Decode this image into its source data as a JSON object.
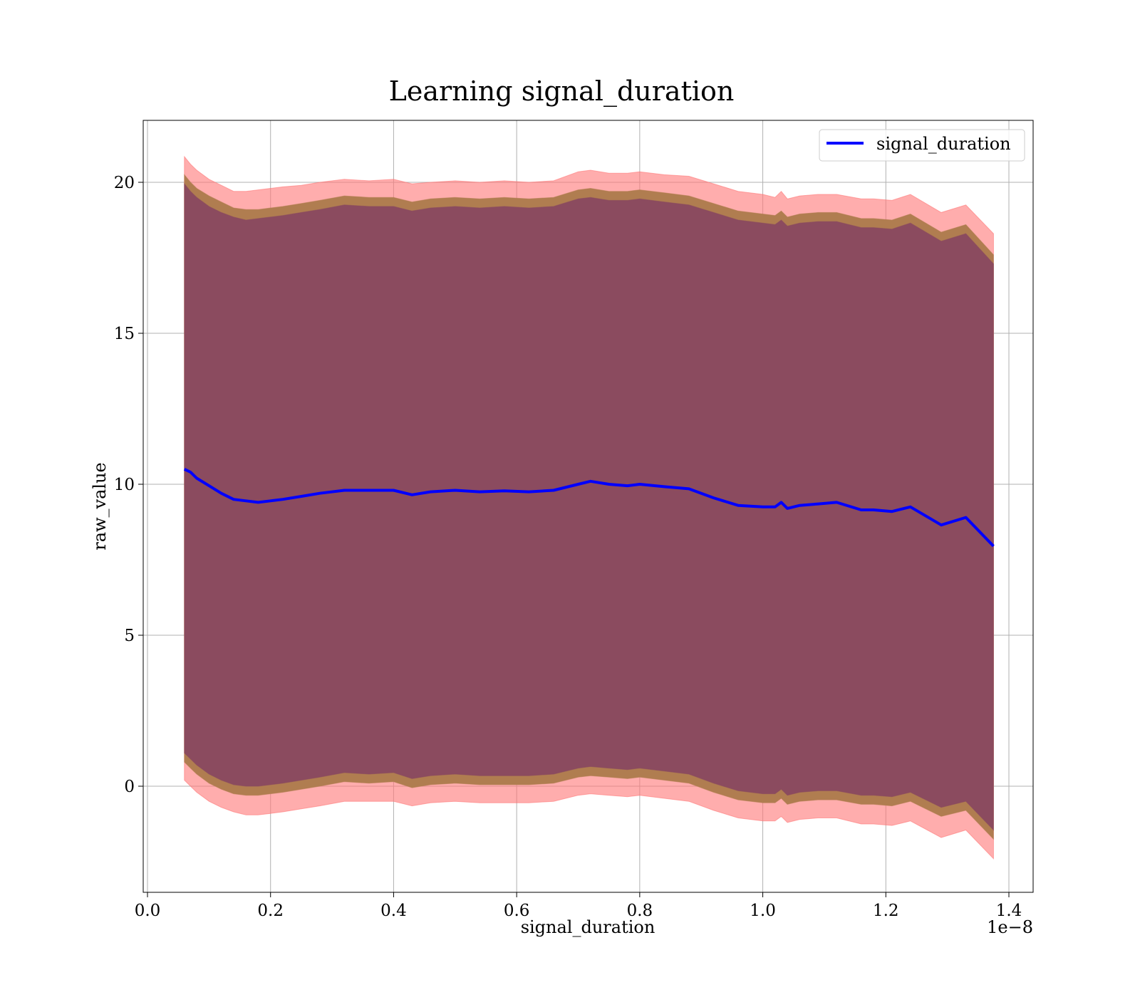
{
  "chart_data": {
    "type": "line",
    "title": "Learning signal_duration",
    "xlabel": "signal_duration",
    "ylabel": "raw_value",
    "x_offset_label": "1e−8",
    "xlim": [
      0.0,
      1.4
    ],
    "ylim": [
      -3.5,
      22
    ],
    "x_ticks": [
      "0.0",
      "0.2",
      "0.4",
      "0.6",
      "0.8",
      "1.0",
      "1.2",
      "1.4"
    ],
    "x_tick_values": [
      0.0,
      0.2,
      0.4,
      0.6,
      0.8,
      1.0,
      1.2,
      1.4
    ],
    "y_ticks": [
      "0",
      "5",
      "10",
      "15",
      "20"
    ],
    "y_tick_values": [
      0,
      5,
      10,
      15,
      20
    ],
    "grid": true,
    "legend": {
      "position": "top-right",
      "entries": [
        "signal_duration"
      ]
    },
    "colors": {
      "line": "#0000ff",
      "outer_band": "#ff7777",
      "middle_band": "#b07d50",
      "inner_band": "#8b4b5f"
    },
    "series": [
      {
        "name": "signal_duration",
        "x": [
          0.06,
          0.07,
          0.08,
          0.1,
          0.12,
          0.14,
          0.16,
          0.18,
          0.2,
          0.22,
          0.25,
          0.28,
          0.32,
          0.36,
          0.4,
          0.43,
          0.46,
          0.5,
          0.54,
          0.58,
          0.62,
          0.66,
          0.7,
          0.72,
          0.75,
          0.78,
          0.8,
          0.84,
          0.88,
          0.92,
          0.96,
          1.0,
          1.02,
          1.03,
          1.04,
          1.06,
          1.09,
          1.12,
          1.16,
          1.18,
          1.21,
          1.24,
          1.29,
          1.33,
          1.375
        ],
        "values": [
          10.5,
          10.4,
          10.2,
          9.95,
          9.7,
          9.5,
          9.45,
          9.4,
          9.45,
          9.5,
          9.6,
          9.7,
          9.8,
          9.8,
          9.8,
          9.65,
          9.75,
          9.8,
          9.75,
          9.78,
          9.75,
          9.8,
          10.0,
          10.1,
          10.0,
          9.95,
          10.0,
          9.92,
          9.85,
          9.55,
          9.3,
          9.25,
          9.25,
          9.4,
          9.2,
          9.3,
          9.35,
          9.4,
          9.15,
          9.15,
          9.1,
          9.25,
          8.65,
          8.9,
          7.95
        ],
        "outer_upper": [
          20.85,
          20.6,
          20.4,
          20.1,
          19.9,
          19.7,
          19.7,
          19.75,
          19.8,
          19.85,
          19.9,
          20.0,
          20.1,
          20.05,
          20.1,
          19.95,
          20.0,
          20.05,
          20.0,
          20.05,
          20.0,
          20.05,
          20.35,
          20.4,
          20.3,
          20.3,
          20.35,
          20.25,
          20.2,
          19.95,
          19.7,
          19.6,
          19.5,
          19.7,
          19.45,
          19.55,
          19.6,
          19.6,
          19.45,
          19.45,
          19.4,
          19.6,
          19.0,
          19.25,
          18.3
        ],
        "outer_lower": [
          0.2,
          0.0,
          -0.2,
          -0.5,
          -0.7,
          -0.85,
          -0.95,
          -0.95,
          -0.9,
          -0.85,
          -0.75,
          -0.65,
          -0.5,
          -0.5,
          -0.5,
          -0.65,
          -0.55,
          -0.5,
          -0.55,
          -0.55,
          -0.55,
          -0.5,
          -0.3,
          -0.25,
          -0.3,
          -0.35,
          -0.3,
          -0.4,
          -0.5,
          -0.8,
          -1.05,
          -1.15,
          -1.15,
          -1.0,
          -1.2,
          -1.1,
          -1.05,
          -1.05,
          -1.25,
          -1.25,
          -1.3,
          -1.15,
          -1.7,
          -1.45,
          -2.4
        ],
        "middle_upper": [
          20.25,
          20.0,
          19.8,
          19.55,
          19.35,
          19.15,
          19.1,
          19.1,
          19.15,
          19.2,
          19.3,
          19.4,
          19.55,
          19.5,
          19.5,
          19.35,
          19.45,
          19.5,
          19.45,
          19.5,
          19.45,
          19.5,
          19.75,
          19.8,
          19.7,
          19.7,
          19.75,
          19.65,
          19.55,
          19.3,
          19.05,
          18.95,
          18.9,
          19.05,
          18.85,
          18.95,
          19.0,
          19.0,
          18.8,
          18.8,
          18.75,
          18.95,
          18.35,
          18.6,
          17.6
        ],
        "middle_lower": [
          0.8,
          0.6,
          0.4,
          0.1,
          -0.1,
          -0.25,
          -0.3,
          -0.3,
          -0.25,
          -0.2,
          -0.1,
          0.0,
          0.15,
          0.1,
          0.15,
          -0.05,
          0.05,
          0.1,
          0.05,
          0.05,
          0.05,
          0.1,
          0.3,
          0.35,
          0.3,
          0.25,
          0.3,
          0.2,
          0.1,
          -0.2,
          -0.45,
          -0.55,
          -0.55,
          -0.4,
          -0.6,
          -0.5,
          -0.45,
          -0.45,
          -0.6,
          -0.6,
          -0.65,
          -0.5,
          -1.0,
          -0.8,
          -1.75
        ],
        "inner_upper": [
          19.95,
          19.7,
          19.5,
          19.2,
          19.0,
          18.85,
          18.75,
          18.8,
          18.85,
          18.9,
          19.0,
          19.1,
          19.25,
          19.2,
          19.2,
          19.05,
          19.15,
          19.2,
          19.15,
          19.2,
          19.15,
          19.2,
          19.45,
          19.5,
          19.4,
          19.4,
          19.45,
          19.35,
          19.25,
          19.0,
          18.75,
          18.65,
          18.6,
          18.75,
          18.55,
          18.65,
          18.7,
          18.7,
          18.5,
          18.5,
          18.45,
          18.65,
          18.05,
          18.3,
          17.3
        ],
        "inner_lower": [
          1.1,
          0.9,
          0.7,
          0.4,
          0.2,
          0.05,
          0.0,
          0.0,
          0.05,
          0.1,
          0.2,
          0.3,
          0.45,
          0.4,
          0.45,
          0.25,
          0.35,
          0.4,
          0.35,
          0.35,
          0.35,
          0.4,
          0.6,
          0.65,
          0.6,
          0.55,
          0.6,
          0.5,
          0.4,
          0.1,
          -0.15,
          -0.25,
          -0.25,
          -0.1,
          -0.3,
          -0.2,
          -0.15,
          -0.15,
          -0.3,
          -0.3,
          -0.35,
          -0.2,
          -0.7,
          -0.5,
          -1.45
        ]
      }
    ]
  }
}
